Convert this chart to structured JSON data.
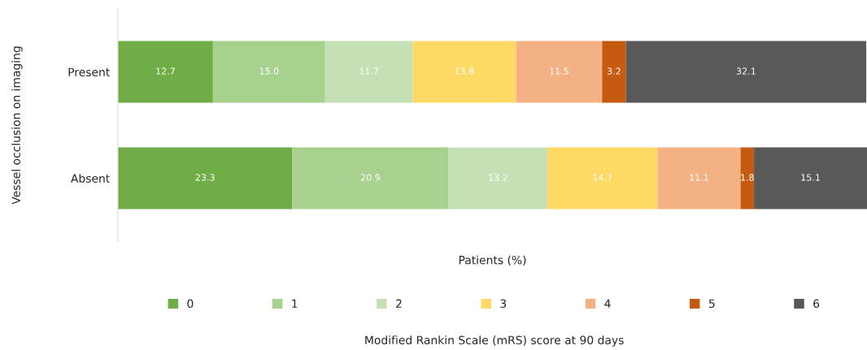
{
  "chart_data": {
    "type": "bar",
    "orientation": "horizontal",
    "stacked": true,
    "tick_labels": "y",
    "grid": false,
    "legend": "bottom",
    "xlabel": "Patients (%)",
    "ylabel": "Vessel occlusion on imaging",
    "legend_title": "Modified Rankin Scale (mRS) score at 90 days",
    "categories": [
      "Present",
      "Absent"
    ],
    "series": [
      {
        "name": "0",
        "color": "#70ad47",
        "values": [
          12.7,
          23.3
        ],
        "value_labels": [
          "12.7",
          "23.3"
        ]
      },
      {
        "name": "1",
        "color": "#a9d18e",
        "values": [
          15.0,
          20.9
        ],
        "value_labels": [
          "15.0",
          "20.9"
        ]
      },
      {
        "name": "2",
        "color": "#c5e0b4",
        "values": [
          11.7,
          13.2
        ],
        "value_labels": [
          "11.7",
          "13.2"
        ]
      },
      {
        "name": "3",
        "color": "#ffd966",
        "values": [
          13.8,
          14.7
        ],
        "value_labels": [
          "13.8",
          "14.7"
        ]
      },
      {
        "name": "4",
        "color": "#f4b183",
        "values": [
          11.5,
          11.1
        ],
        "value_labels": [
          "11.5",
          "11.1"
        ]
      },
      {
        "name": "5",
        "color": "#c55a11",
        "values": [
          3.2,
          1.8
        ],
        "value_labels": [
          "3.2",
          "1.8"
        ]
      },
      {
        "name": "6",
        "color": "#595959",
        "values": [
          32.1,
          15.1
        ],
        "value_labels": [
          "32.1",
          "15.1"
        ]
      }
    ]
  }
}
